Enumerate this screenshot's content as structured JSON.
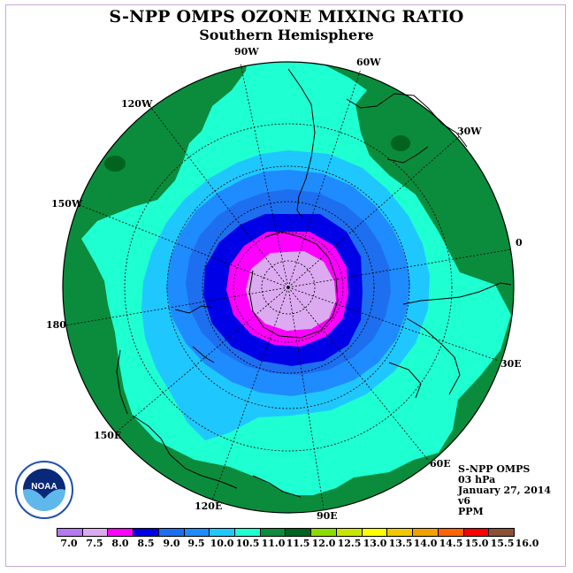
{
  "header": {
    "title": "S-NPP OMPS OZONE MIXING RATIO",
    "subtitle": "Southern Hemisphere"
  },
  "map": {
    "projection": "polar stereographic, south pole",
    "longitude_labels": [
      "90W",
      "60W",
      "120W",
      "30W",
      "150W",
      "0",
      "180",
      "30E",
      "150E",
      "60E",
      "120E",
      "90E"
    ],
    "contour_colors": {
      "c8_0": "#dcaaf0",
      "c8_5": "#ff00ff",
      "c9_0": "#0000e6",
      "c9_5": "#1e6ef0",
      "c10_0": "#1e8cff",
      "c10_5": "#1ec8ff",
      "c11_0": "#1effd2",
      "c11_5": "#0a8c3c"
    }
  },
  "info": {
    "instrument": "S-NPP OMPS",
    "level": "03 hPa",
    "date": "January 27, 2014",
    "version": "v6",
    "units": "PPM"
  },
  "colorbar": {
    "colors": [
      "#b478f0",
      "#dcaaf0",
      "#ff00ff",
      "#0000e6",
      "#1e6ef0",
      "#1e8cff",
      "#1ec8ff",
      "#1effd2",
      "#0a8c3c",
      "#00641e",
      "#8cdc00",
      "#c8e600",
      "#ffff00",
      "#f0c800",
      "#f0a000",
      "#ff6400",
      "#ff0000",
      "#8c5032"
    ],
    "ticks": [
      "7.0",
      "7.5",
      "8.0",
      "8.5",
      "9.0",
      "9.5",
      "10.0",
      "10.5",
      "11.0",
      "11.5",
      "12.0",
      "12.5",
      "13.0",
      "13.5",
      "14.0",
      "14.5",
      "15.0",
      "15.5",
      "16.0"
    ]
  },
  "logo": {
    "text": "NOAA"
  }
}
